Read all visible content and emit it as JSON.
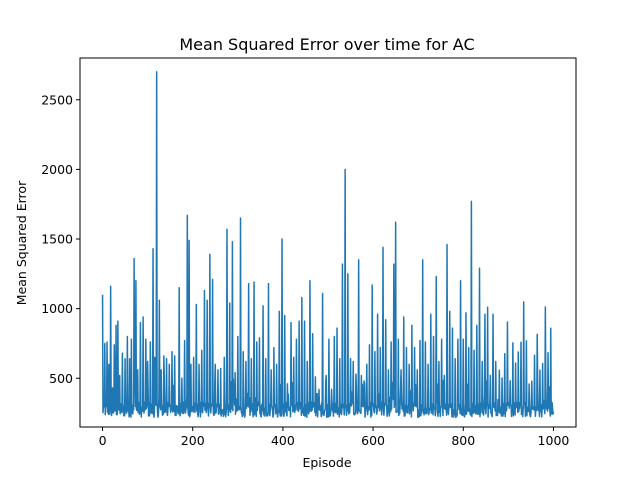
{
  "chart_data": {
    "type": "line",
    "title": "Mean Squared Error over time for AC",
    "xlabel": "Episode",
    "ylabel": "Mean Squared Error",
    "xlim": [
      -50,
      1050
    ],
    "ylim": [
      150,
      2800
    ],
    "xticks": [
      0,
      200,
      400,
      600,
      800,
      1000
    ],
    "yticks": [
      500,
      1000,
      1500,
      2000,
      2500
    ],
    "grid": false,
    "color": "#1f77b4",
    "series": [
      {
        "x_start": 0,
        "x_end": 1000,
        "baseline_low": 220,
        "baseline_high": 330,
        "peaks": [
          [
            0,
            1100
          ],
          [
            2,
            300
          ],
          [
            5,
            750
          ],
          [
            10,
            760
          ],
          [
            14,
            600
          ],
          [
            18,
            1160
          ],
          [
            22,
            430
          ],
          [
            26,
            740
          ],
          [
            30,
            880
          ],
          [
            34,
            910
          ],
          [
            38,
            520
          ],
          [
            44,
            680
          ],
          [
            50,
            640
          ],
          [
            55,
            800
          ],
          [
            60,
            640
          ],
          [
            64,
            780
          ],
          [
            70,
            1360
          ],
          [
            74,
            1200
          ],
          [
            78,
            560
          ],
          [
            84,
            900
          ],
          [
            90,
            940
          ],
          [
            96,
            780
          ],
          [
            100,
            620
          ],
          [
            106,
            760
          ],
          [
            112,
            1430
          ],
          [
            116,
            650
          ],
          [
            120,
            2700
          ],
          [
            126,
            1060
          ],
          [
            130,
            560
          ],
          [
            136,
            660
          ],
          [
            142,
            640
          ],
          [
            148,
            600
          ],
          [
            154,
            690
          ],
          [
            160,
            660
          ],
          [
            170,
            1150
          ],
          [
            176,
            500
          ],
          [
            182,
            770
          ],
          [
            188,
            1670
          ],
          [
            192,
            1490
          ],
          [
            196,
            600
          ],
          [
            202,
            650
          ],
          [
            208,
            1030
          ],
          [
            214,
            600
          ],
          [
            220,
            700
          ],
          [
            226,
            1130
          ],
          [
            232,
            1060
          ],
          [
            238,
            1390
          ],
          [
            244,
            1210
          ],
          [
            250,
            600
          ],
          [
            256,
            560
          ],
          [
            262,
            570
          ],
          [
            270,
            650
          ],
          [
            276,
            1570
          ],
          [
            282,
            1040
          ],
          [
            288,
            1480
          ],
          [
            294,
            540
          ],
          [
            300,
            800
          ],
          [
            306,
            1650
          ],
          [
            312,
            690
          ],
          [
            318,
            620
          ],
          [
            324,
            1180
          ],
          [
            330,
            640
          ],
          [
            336,
            1190
          ],
          [
            342,
            760
          ],
          [
            348,
            790
          ],
          [
            356,
            1020
          ],
          [
            362,
            640
          ],
          [
            368,
            1180
          ],
          [
            374,
            560
          ],
          [
            380,
            720
          ],
          [
            386,
            600
          ],
          [
            392,
            980
          ],
          [
            398,
            1500
          ],
          [
            404,
            950
          ],
          [
            410,
            460
          ],
          [
            418,
            900
          ],
          [
            424,
            650
          ],
          [
            430,
            780
          ],
          [
            436,
            910
          ],
          [
            442,
            1080
          ],
          [
            448,
            910
          ],
          [
            454,
            620
          ],
          [
            460,
            1200
          ],
          [
            466,
            820
          ],
          [
            472,
            510
          ],
          [
            480,
            420
          ],
          [
            488,
            1110
          ],
          [
            496,
            520
          ],
          [
            502,
            780
          ],
          [
            508,
            420
          ],
          [
            514,
            800
          ],
          [
            520,
            860
          ],
          [
            526,
            640
          ],
          [
            532,
            1320
          ],
          [
            538,
            2000
          ],
          [
            544,
            1250
          ],
          [
            550,
            640
          ],
          [
            556,
            620
          ],
          [
            562,
            530
          ],
          [
            568,
            1350
          ],
          [
            574,
            520
          ],
          [
            580,
            480
          ],
          [
            586,
            600
          ],
          [
            592,
            740
          ],
          [
            598,
            1170
          ],
          [
            604,
            690
          ],
          [
            610,
            960
          ],
          [
            616,
            720
          ],
          [
            622,
            1440
          ],
          [
            628,
            920
          ],
          [
            634,
            560
          ],
          [
            640,
            760
          ],
          [
            646,
            1320
          ],
          [
            650,
            1620
          ],
          [
            656,
            780
          ],
          [
            662,
            560
          ],
          [
            668,
            940
          ],
          [
            674,
            720
          ],
          [
            680,
            600
          ],
          [
            686,
            880
          ],
          [
            692,
            720
          ],
          [
            698,
            560
          ],
          [
            704,
            770
          ],
          [
            710,
            1350
          ],
          [
            716,
            760
          ],
          [
            722,
            600
          ],
          [
            728,
            960
          ],
          [
            734,
            800
          ],
          [
            740,
            1230
          ],
          [
            746,
            620
          ],
          [
            752,
            780
          ],
          [
            758,
            520
          ],
          [
            764,
            1460
          ],
          [
            770,
            980
          ],
          [
            776,
            860
          ],
          [
            782,
            640
          ],
          [
            788,
            780
          ],
          [
            794,
            1200
          ],
          [
            800,
            780
          ],
          [
            806,
            970
          ],
          [
            812,
            720
          ],
          [
            818,
            1770
          ],
          [
            824,
            700
          ],
          [
            830,
            880
          ],
          [
            836,
            1290
          ],
          [
            842,
            620
          ],
          [
            848,
            960
          ],
          [
            854,
            1010
          ],
          [
            860,
            520
          ],
          [
            866,
            960
          ],
          [
            872,
            620
          ],
          [
            878,
            350
          ]
        ]
      }
    ]
  }
}
